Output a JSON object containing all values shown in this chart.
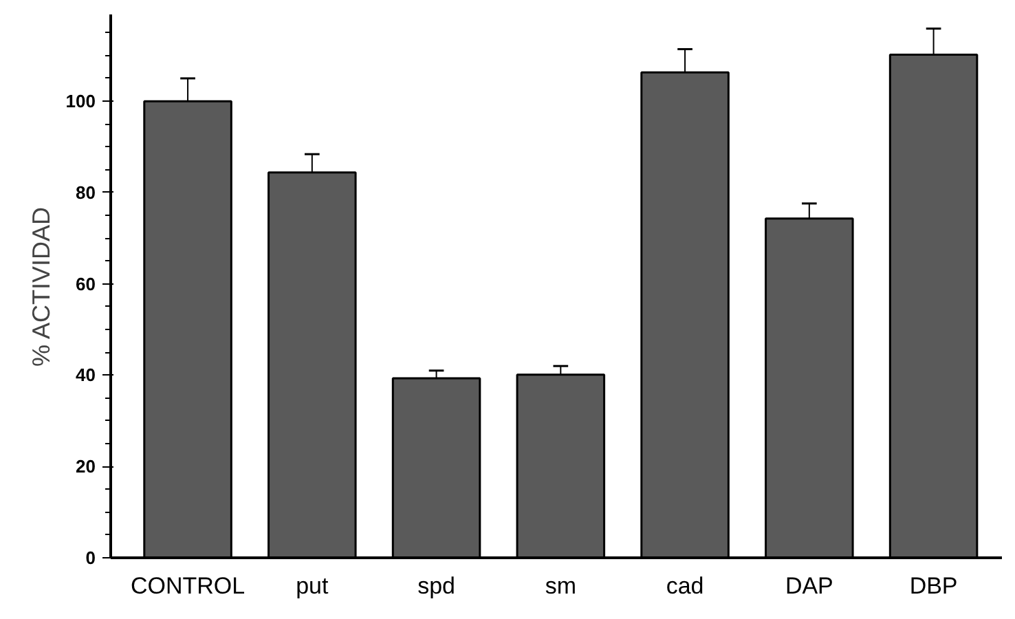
{
  "chart_data": {
    "type": "bar",
    "ylabel": "% ACTIVIDAD",
    "categories": [
      "CONTROL",
      "put",
      "spd",
      "sm",
      "cad",
      "DAP",
      "DBP"
    ],
    "values": [
      100,
      84.4,
      39.3,
      40.1,
      106.3,
      74.3,
      110.2
    ],
    "errors": [
      [
        100,
        105
      ],
      [
        84.4,
        88.4
      ],
      [
        39.3,
        41
      ],
      [
        40.1,
        42
      ],
      [
        106.3,
        111.4
      ],
      [
        74.3,
        77.6
      ],
      [
        110.2,
        115.9
      ]
    ],
    "color": "#5a5a5a",
    "ylim": [
      0,
      119
    ],
    "yticks": [
      0,
      20,
      40,
      60,
      80,
      100
    ],
    "grid": false
  }
}
